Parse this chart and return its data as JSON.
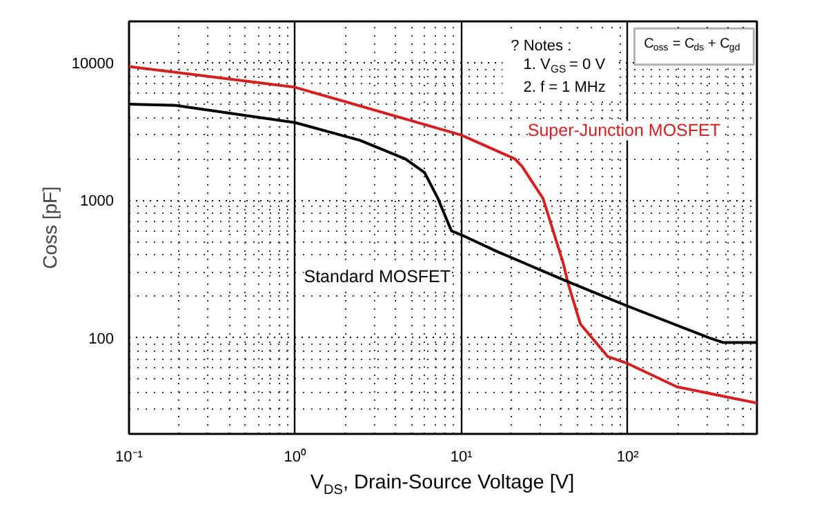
{
  "chart_data": {
    "type": "line",
    "xlabel": "V$_{DS}$, Drain-Source Voltage [V]",
    "ylabel": "Coss [pF]",
    "log": "xy",
    "grid": true,
    "legend": false,
    "marker": "none",
    "line_style": "solid",
    "xlim": [
      0.1,
      600
    ],
    "ylim": [
      20,
      20000
    ],
    "xticks": [
      {
        "value": 0.1,
        "label": "10⁻¹"
      },
      {
        "value": 1,
        "label": "10⁰"
      },
      {
        "value": 10,
        "label": "10¹"
      },
      {
        "value": 100,
        "label": "10²"
      }
    ],
    "yticks": [
      100,
      1000,
      10000
    ],
    "series": [
      {
        "name": "Super-Junction MOSFET",
        "color": "#d42020",
        "x": [
          0.1,
          1,
          10,
          21,
          23.2,
          31,
          41,
          44,
          52,
          76,
          100,
          198,
          600
        ],
        "values": [
          9400,
          6630,
          2980,
          2000,
          1760,
          1030,
          348,
          245,
          126,
          73,
          65,
          44,
          33.5
        ]
      },
      {
        "name": "Standard MOSFET",
        "color": "#000000",
        "x": [
          0.1,
          0.19,
          1,
          2.45,
          4.6,
          6,
          7.2,
          8.7,
          10,
          16.4,
          44,
          100,
          309,
          374,
          600
        ],
        "values": [
          5000,
          4900,
          3670,
          2730,
          2000,
          1590,
          1040,
          600,
          560,
          424,
          255,
          170,
          100,
          92.5,
          92.5
        ]
      }
    ],
    "annotations": [
      "?  Notes :",
      "1. V$_{GS}$ = 0 V",
      "2. f = 1 MHz",
      "C$_{oss}$ = C$_{ds}$ + C$_{gd}$"
    ]
  }
}
